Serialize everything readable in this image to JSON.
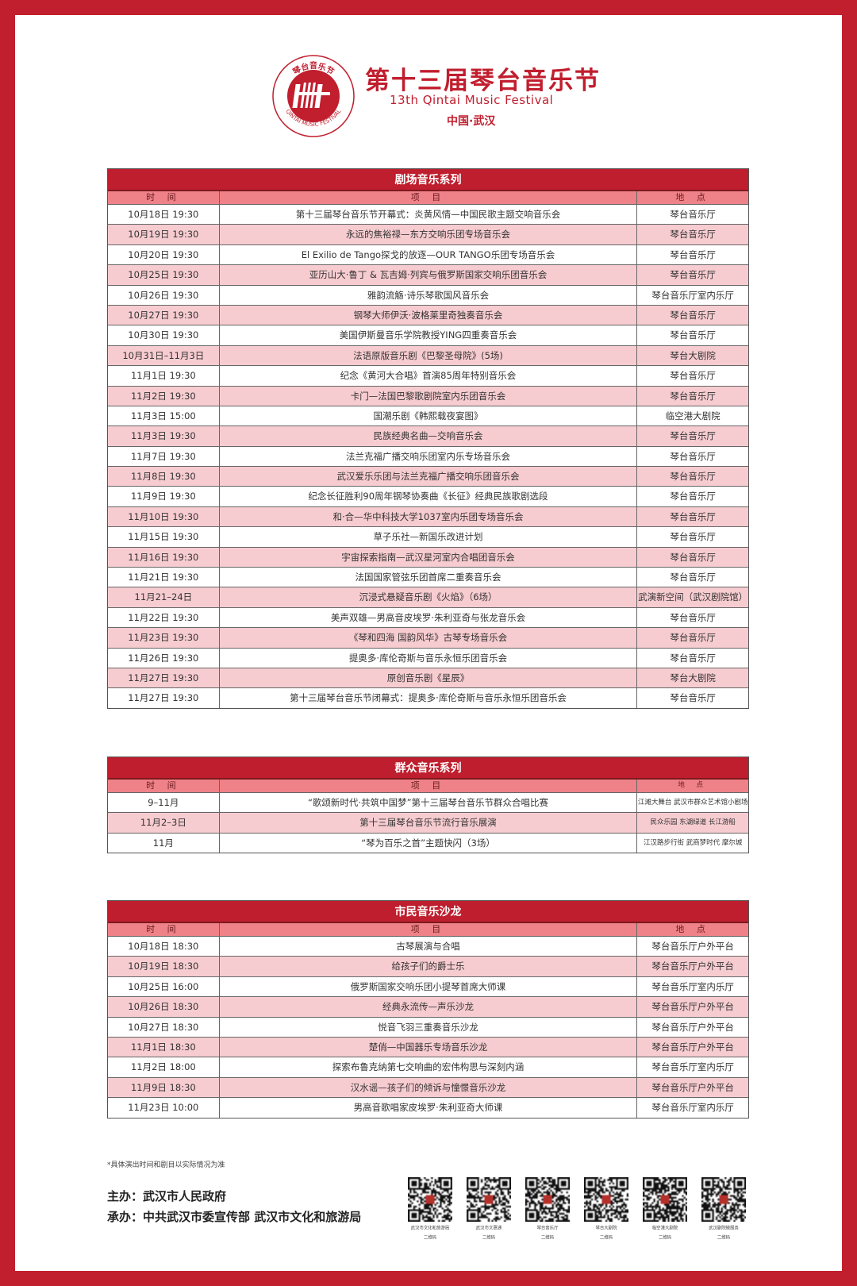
{
  "header": {
    "title_cn": "第十三届琴台音乐节",
    "title_en": "13th Qintai Music Festival",
    "location": "中国·武汉",
    "logo_text_cn": "琴台音乐节",
    "logo_text_en": "QINTAI MUSIC FESTIVAL"
  },
  "colors": {
    "brand_red": "#c11e2e",
    "header_row": "#ee8288",
    "alt_row": "#f7ccd0"
  },
  "columns": {
    "time": "时 间",
    "item": "项 目",
    "venue": "地 点"
  },
  "sections": [
    {
      "title": "剧场音乐系列",
      "rows": [
        [
          "10月18日 19:30",
          "第十三届琴台音乐节开幕式：炎黄风情—中国民歌主题交响音乐会",
          "琴台音乐厅"
        ],
        [
          "10月19日 19:30",
          "永远的焦裕禄—东方交响乐团专场音乐会",
          "琴台音乐厅"
        ],
        [
          "10月20日 19:30",
          "El Exilio de Tango探戈的放逐—OUR TANGO乐团专场音乐会",
          "琴台音乐厅"
        ],
        [
          "10月25日 19:30",
          "亚历山大·鲁丁 & 瓦吉姆·列宾与俄罗斯国家交响乐团音乐会",
          "琴台音乐厅"
        ],
        [
          "10月26日 19:30",
          "雅韵流觞·诗乐琴歌国风音乐会",
          "琴台音乐厅室内乐厅"
        ],
        [
          "10月27日 19:30",
          "钢琴大师伊沃·波格莱里奇独奏音乐会",
          "琴台音乐厅"
        ],
        [
          "10月30日 19:30",
          "美国伊斯曼音乐学院教授YING四重奏音乐会",
          "琴台音乐厅"
        ],
        [
          "10月31日–11月3日",
          "法语原版音乐剧《巴黎圣母院》(5场)",
          "琴台大剧院"
        ],
        [
          "11月1日 19:30",
          "纪念《黄河大合唱》首演85周年特别音乐会",
          "琴台音乐厅"
        ],
        [
          "11月2日 19:30",
          "卡门—法国巴黎歌剧院室内乐团音乐会",
          "琴台音乐厅"
        ],
        [
          "11月3日 15:00",
          "国潮乐剧《韩熙载夜宴图》",
          "临空港大剧院"
        ],
        [
          "11月3日 19:30",
          "民族经典名曲—交响音乐会",
          "琴台音乐厅"
        ],
        [
          "11月7日 19:30",
          "法兰克福广播交响乐团室内乐专场音乐会",
          "琴台音乐厅"
        ],
        [
          "11月8日 19:30",
          "武汉爱乐乐团与法兰克福广播交响乐团音乐会",
          "琴台音乐厅"
        ],
        [
          "11月9日 19:30",
          "纪念长征胜利90周年钢琴协奏曲《长征》经典民族歌剧选段",
          "琴台音乐厅"
        ],
        [
          "11月10日 19:30",
          "和·合—华中科技大学1037室内乐团专场音乐会",
          "琴台音乐厅"
        ],
        [
          "11月15日 19:30",
          "草子乐社—新国乐改进计划",
          "琴台音乐厅"
        ],
        [
          "11月16日 19:30",
          "宇宙探索指南—武汉星河室内合唱团音乐会",
          "琴台音乐厅"
        ],
        [
          "11月21日 19:30",
          "法国国家管弦乐团首席二重奏音乐会",
          "琴台音乐厅"
        ],
        [
          "11月21–24日",
          "沉浸式悬疑音乐剧《火焰》（6场）",
          "武演新空间（武汉剧院馆）"
        ],
        [
          "11月22日 19:30",
          "美声双雄—男高音皮埃罗·朱利亚奇与张龙音乐会",
          "琴台音乐厅"
        ],
        [
          "11月23日 19:30",
          "《琴和四海 国韵风华》古琴专场音乐会",
          "琴台音乐厅"
        ],
        [
          "11月26日 19:30",
          "提奥多·库伦奇斯与音乐永恒乐团音乐会",
          "琴台音乐厅"
        ],
        [
          "11月27日 19:30",
          "原创音乐剧《星辰》",
          "琴台大剧院"
        ],
        [
          "11月27日 19:30",
          "第十三届琴台音乐节闭幕式：提奥多·库伦奇斯与音乐永恒乐团音乐会",
          "琴台音乐厅"
        ]
      ]
    },
    {
      "title": "群众音乐系列",
      "rows": [
        [
          "9–11月",
          "“歌颂新时代·共筑中国梦”第十三届琴台音乐节群众合唱比赛",
          "江滩大舞台  武汉市群众艺术馆小剧场"
        ],
        [
          "11月2–3日",
          "第十三届琴台音乐节流行音乐展演",
          "民众乐园  东湖绿道  长江游船"
        ],
        [
          "11月",
          "“琴为百乐之首”主题快闪（3场）",
          "江汉路步行街  武商梦时代  摩尔城"
        ]
      ]
    },
    {
      "title": "市民音乐沙龙",
      "rows": [
        [
          "10月18日 18:30",
          "古琴展演与合唱",
          "琴台音乐厅户外平台"
        ],
        [
          "10月19日 18:30",
          "给孩子们的爵士乐",
          "琴台音乐厅户外平台"
        ],
        [
          "10月25日 16:00",
          "俄罗斯国家交响乐团小提琴首席大师课",
          "琴台音乐厅室内乐厅"
        ],
        [
          "10月26日 18:30",
          "经典永流传—声乐沙龙",
          "琴台音乐厅户外平台"
        ],
        [
          "10月27日 18:30",
          "悦音飞羽三重奏音乐沙龙",
          "琴台音乐厅户外平台"
        ],
        [
          "11月1日 18:30",
          "楚俏—中国器乐专场音乐沙龙",
          "琴台音乐厅户外平台"
        ],
        [
          "11月2日 18:00",
          "探索布鲁克纳第七交响曲的宏伟构思与深刻内涵",
          "琴台音乐厅室内乐厅"
        ],
        [
          "11月9日 18:30",
          "汉水谣—孩子们的倾诉与憧憬音乐沙龙",
          "琴台音乐厅户外平台"
        ],
        [
          "11月23日 10:00",
          "男高音歌唱家皮埃罗·朱利亚奇大师课",
          "琴台音乐厅室内乐厅"
        ]
      ]
    }
  ],
  "footer": {
    "note": "*具体演出时间和剧目以实际情况为准",
    "host": "主办：武汉市人民政府",
    "organizer": "承办：中共武汉市委宣传部  武汉市文化和旅游局",
    "qrcodes": [
      {
        "caption": "武汉市文化和旅游局",
        "sub": "二维码"
      },
      {
        "caption": "武汉市文惠通",
        "sub": "二维码"
      },
      {
        "caption": "琴台音乐厅",
        "sub": "二维码"
      },
      {
        "caption": "琴台大剧院",
        "sub": "二维码"
      },
      {
        "caption": "临空港大剧院",
        "sub": "二维码"
      },
      {
        "caption": "武汉剧院微服务",
        "sub": "二维码"
      }
    ]
  }
}
